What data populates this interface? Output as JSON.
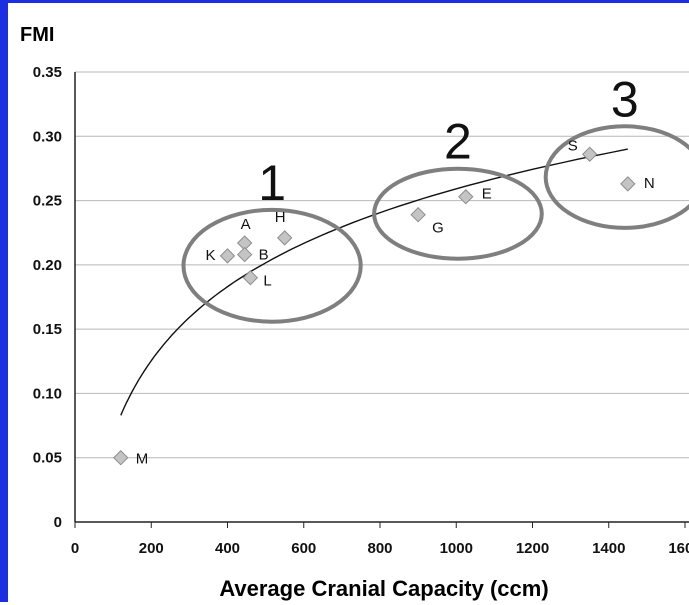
{
  "chart_data": {
    "type": "scatter",
    "title": "",
    "ylabel": "FMI",
    "xlabel": "Average Cranial Capacity (ccm)",
    "xlim": [
      0,
      1600
    ],
    "ylim": [
      0,
      0.35
    ],
    "x_ticks": [
      "0",
      "200",
      "400",
      "600",
      "800",
      "1000",
      "1200",
      "1400",
      "1600"
    ],
    "y_ticks": [
      "0",
      "0.05",
      "0.10",
      "0.15",
      "0.20",
      "0.25",
      "0.30",
      "0.35"
    ],
    "grid": "horizontal",
    "points": [
      {
        "label": "M",
        "x": 120,
        "y": 0.05
      },
      {
        "label": "K",
        "x": 400,
        "y": 0.207
      },
      {
        "label": "A",
        "x": 445,
        "y": 0.217
      },
      {
        "label": "B",
        "x": 445,
        "y": 0.208
      },
      {
        "label": "L",
        "x": 460,
        "y": 0.19
      },
      {
        "label": "H",
        "x": 550,
        "y": 0.221
      },
      {
        "label": "G",
        "x": 900,
        "y": 0.239
      },
      {
        "label": "E",
        "x": 1025,
        "y": 0.253
      },
      {
        "label": "S",
        "x": 1350,
        "y": 0.286
      },
      {
        "label": "N",
        "x": 1450,
        "y": 0.263
      }
    ],
    "trendline": {
      "type": "logarithmic",
      "x_range": [
        120,
        1450
      ],
      "y_start": 0.083,
      "y_end": 0.29
    },
    "groups": [
      {
        "label": "1",
        "members": [
          "K",
          "A",
          "B",
          "L",
          "H"
        ]
      },
      {
        "label": "2",
        "members": [
          "G",
          "E"
        ]
      },
      {
        "label": "3",
        "members": [
          "S",
          "N"
        ]
      }
    ],
    "colors": {
      "marker": "#c4c4c4",
      "marker_stroke": "#8e8e8e",
      "circle": "#7f7f7f",
      "grid": "#b8b8b8",
      "border": "#1b2ee0"
    }
  }
}
